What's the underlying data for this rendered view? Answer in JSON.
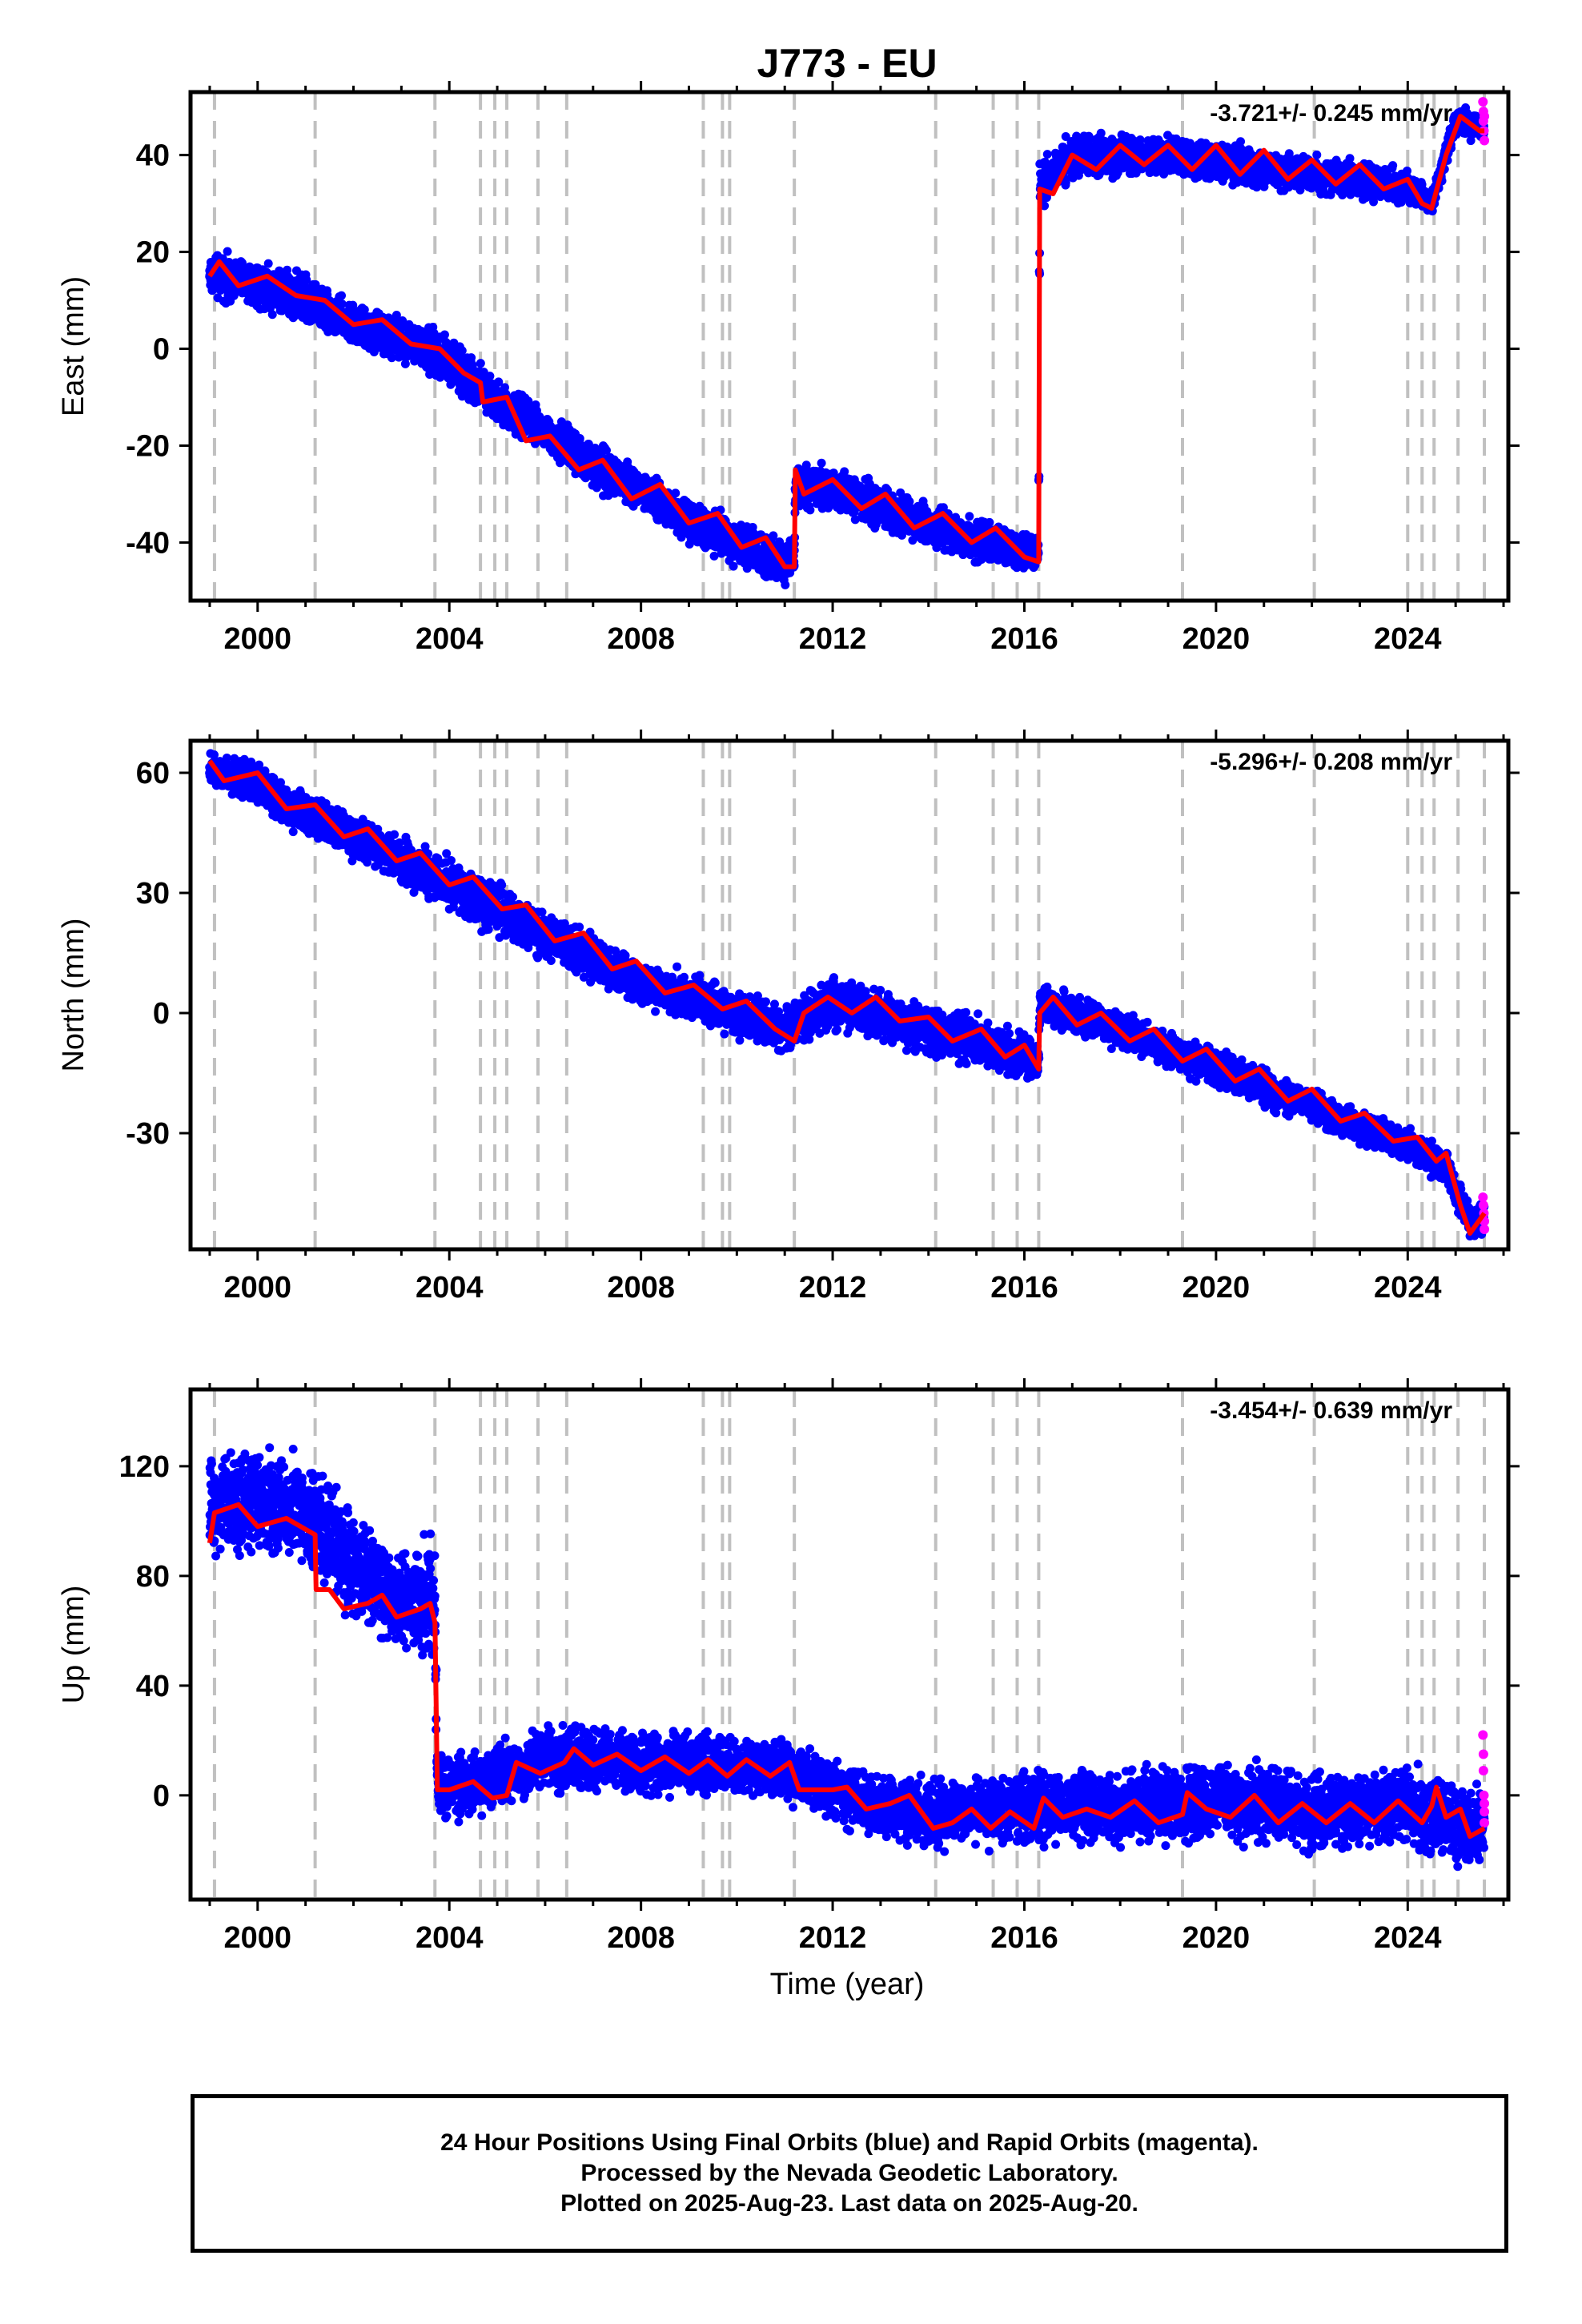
{
  "title": "J773 - EU",
  "xlabel": "Time (year)",
  "x_ticks": [
    "2000",
    "2004",
    "2008",
    "2012",
    "2016",
    "2020",
    "2024"
  ],
  "colors": {
    "final_orbits": "#0000ff",
    "rapid_orbits": "#ff00ff",
    "model": "#ff0000",
    "event_lines": "#c0c0c0"
  },
  "event_years": [
    1999.1,
    2001.2,
    2003.7,
    2004.65,
    2004.95,
    2005.2,
    2005.85,
    2006.45,
    2009.3,
    2009.7,
    2009.85,
    2011.2,
    2014.15,
    2015.35,
    2015.85,
    2016.3,
    2019.3,
    2022.05,
    2024.0,
    2024.3,
    2024.55,
    2025.05,
    2025.6
  ],
  "footer": {
    "line1": "24 Hour Positions Using Final Orbits (blue) and Rapid Orbits (magenta).",
    "line2": "Processed by the Nevada Geodetic Laboratory.",
    "line3": "Plotted on 2025-Aug-23. Last data on 2025-Aug-20."
  },
  "chart_data": [
    {
      "type": "scatter",
      "ylabel": "East (mm)",
      "rate_label": "-3.721+/- 0.245 mm/yr",
      "xlim": [
        1998.6,
        2026.1
      ],
      "ylim": [
        -52,
        53
      ],
      "y_ticks": [
        -40,
        -20,
        0,
        20,
        40
      ],
      "model_line": [
        [
          1999.0,
          15
        ],
        [
          1999.2,
          18
        ],
        [
          1999.6,
          13
        ],
        [
          2000.2,
          15
        ],
        [
          2000.8,
          11
        ],
        [
          2001.4,
          10
        ],
        [
          2002.0,
          5
        ],
        [
          2002.6,
          6
        ],
        [
          2003.2,
          1
        ],
        [
          2003.8,
          0
        ],
        [
          2004.3,
          -5
        ],
        [
          2004.65,
          -7
        ],
        [
          2004.7,
          -11
        ],
        [
          2005.2,
          -10
        ],
        [
          2005.6,
          -19
        ],
        [
          2006.1,
          -18
        ],
        [
          2006.7,
          -25
        ],
        [
          2007.2,
          -23
        ],
        [
          2007.8,
          -31
        ],
        [
          2008.4,
          -28
        ],
        [
          2009.0,
          -36
        ],
        [
          2009.6,
          -34
        ],
        [
          2010.1,
          -41
        ],
        [
          2010.6,
          -39
        ],
        [
          2011.0,
          -45
        ],
        [
          2011.2,
          -45
        ],
        [
          2011.22,
          -25
        ],
        [
          2011.4,
          -30
        ],
        [
          2012.0,
          -27
        ],
        [
          2012.6,
          -33
        ],
        [
          2013.1,
          -30
        ],
        [
          2013.7,
          -37
        ],
        [
          2014.3,
          -34
        ],
        [
          2014.9,
          -40
        ],
        [
          2015.4,
          -37
        ],
        [
          2016.0,
          -43
        ],
        [
          2016.3,
          -44
        ],
        [
          2016.32,
          33
        ],
        [
          2016.6,
          32
        ],
        [
          2017.0,
          40
        ],
        [
          2017.5,
          37
        ],
        [
          2018.0,
          42
        ],
        [
          2018.5,
          38
        ],
        [
          2019.0,
          42
        ],
        [
          2019.5,
          37
        ],
        [
          2020.0,
          42
        ],
        [
          2020.5,
          36
        ],
        [
          2021.0,
          41
        ],
        [
          2021.5,
          35
        ],
        [
          2022.0,
          39
        ],
        [
          2022.5,
          34
        ],
        [
          2023.0,
          38
        ],
        [
          2023.5,
          33
        ],
        [
          2024.0,
          35
        ],
        [
          2024.3,
          30
        ],
        [
          2024.5,
          29
        ],
        [
          2024.8,
          40
        ],
        [
          2025.1,
          48
        ],
        [
          2025.5,
          45
        ],
        [
          2025.6,
          45
        ]
      ],
      "scatter_envelope": [
        [
          1999.0,
          10,
          21
        ],
        [
          2000.0,
          7,
          20
        ],
        [
          2001.0,
          4,
          17
        ],
        [
          2002.0,
          -1,
          10
        ],
        [
          2003.0,
          -4,
          8
        ],
        [
          2004.0,
          -9,
          4
        ],
        [
          2005.0,
          -16,
          -5
        ],
        [
          2006.0,
          -22,
          -12
        ],
        [
          2007.0,
          -30,
          -18
        ],
        [
          2008.0,
          -35,
          -24
        ],
        [
          2009.0,
          -41,
          -30
        ],
        [
          2010.0,
          -46,
          -34
        ],
        [
          2011.0,
          -50,
          -38
        ],
        [
          2011.2,
          -47,
          -40
        ],
        [
          2011.22,
          -34,
          -22
        ],
        [
          2012.0,
          -35,
          -23
        ],
        [
          2013.0,
          -39,
          -27
        ],
        [
          2014.0,
          -42,
          -31
        ],
        [
          2015.0,
          -45,
          -34
        ],
        [
          2016.3,
          -47,
          -38
        ],
        [
          2016.32,
          28,
          39
        ],
        [
          2017.0,
          34,
          46
        ],
        [
          2018.0,
          35,
          45
        ],
        [
          2019.0,
          35,
          45
        ],
        [
          2020.0,
          33,
          44
        ],
        [
          2021.0,
          32,
          42
        ],
        [
          2022.0,
          31,
          41
        ],
        [
          2023.0,
          30,
          40
        ],
        [
          2024.0,
          29,
          38
        ],
        [
          2024.5,
          27,
          33
        ],
        [
          2025.0,
          43,
          51
        ],
        [
          2025.6,
          42,
          49
        ]
      ],
      "rapid_points": [
        [
          2025.57,
          51
        ],
        [
          2025.58,
          49
        ],
        [
          2025.58,
          47
        ],
        [
          2025.59,
          45
        ],
        [
          2025.6,
          43
        ],
        [
          2025.6,
          48
        ]
      ]
    },
    {
      "type": "scatter",
      "ylabel": "North (mm)",
      "rate_label": "-5.296+/- 0.208 mm/yr",
      "xlim": [
        1998.6,
        2026.1
      ],
      "ylim": [
        -59,
        68
      ],
      "y_ticks": [
        -30,
        0,
        30,
        60
      ],
      "model_line": [
        [
          1999.0,
          63
        ],
        [
          1999.3,
          58
        ],
        [
          2000.0,
          60
        ],
        [
          2000.6,
          51
        ],
        [
          2001.2,
          52
        ],
        [
          2001.8,
          44
        ],
        [
          2002.3,
          46
        ],
        [
          2002.9,
          38
        ],
        [
          2003.4,
          40
        ],
        [
          2004.0,
          32
        ],
        [
          2004.5,
          34
        ],
        [
          2005.1,
          26
        ],
        [
          2005.6,
          27
        ],
        [
          2006.2,
          18
        ],
        [
          2006.8,
          20
        ],
        [
          2007.4,
          11
        ],
        [
          2007.9,
          13
        ],
        [
          2008.5,
          5
        ],
        [
          2009.1,
          7
        ],
        [
          2009.7,
          1
        ],
        [
          2010.2,
          3
        ],
        [
          2010.8,
          -4
        ],
        [
          2011.2,
          -7
        ],
        [
          2011.4,
          0
        ],
        [
          2011.9,
          4
        ],
        [
          2012.4,
          0
        ],
        [
          2012.9,
          4
        ],
        [
          2013.4,
          -2
        ],
        [
          2014.0,
          -1
        ],
        [
          2014.5,
          -7
        ],
        [
          2015.1,
          -4
        ],
        [
          2015.6,
          -11
        ],
        [
          2016.0,
          -8
        ],
        [
          2016.3,
          -14
        ],
        [
          2016.32,
          0
        ],
        [
          2016.6,
          4
        ],
        [
          2017.1,
          -3
        ],
        [
          2017.6,
          0
        ],
        [
          2018.2,
          -7
        ],
        [
          2018.7,
          -4
        ],
        [
          2019.3,
          -12
        ],
        [
          2019.8,
          -9
        ],
        [
          2020.4,
          -17
        ],
        [
          2020.9,
          -14
        ],
        [
          2021.5,
          -22
        ],
        [
          2022.0,
          -19
        ],
        [
          2022.6,
          -27
        ],
        [
          2023.1,
          -25
        ],
        [
          2023.7,
          -32
        ],
        [
          2024.2,
          -31
        ],
        [
          2024.6,
          -37
        ],
        [
          2024.8,
          -35
        ],
        [
          2025.1,
          -48
        ],
        [
          2025.3,
          -55
        ],
        [
          2025.6,
          -50
        ]
      ],
      "scatter_envelope": [
        [
          1999.0,
          56,
          67
        ],
        [
          2000.0,
          50,
          64
        ],
        [
          2001.0,
          43,
          56
        ],
        [
          2002.0,
          37,
          51
        ],
        [
          2003.0,
          31,
          45
        ],
        [
          2004.0,
          24,
          40
        ],
        [
          2005.0,
          18,
          34
        ],
        [
          2006.0,
          12,
          27
        ],
        [
          2007.0,
          6,
          21
        ],
        [
          2008.0,
          1,
          14
        ],
        [
          2009.0,
          -3,
          11
        ],
        [
          2010.0,
          -7,
          7
        ],
        [
          2011.0,
          -11,
          3
        ],
        [
          2012.0,
          -6,
          11
        ],
        [
          2013.0,
          -9,
          7
        ],
        [
          2014.0,
          -12,
          4
        ],
        [
          2015.0,
          -15,
          1
        ],
        [
          2016.3,
          -19,
          -5
        ],
        [
          2016.32,
          -4,
          8
        ],
        [
          2017.0,
          -6,
          6
        ],
        [
          2018.0,
          -10,
          2
        ],
        [
          2019.0,
          -15,
          -3
        ],
        [
          2020.0,
          -20,
          -8
        ],
        [
          2021.0,
          -24,
          -13
        ],
        [
          2022.0,
          -29,
          -18
        ],
        [
          2023.0,
          -34,
          -23
        ],
        [
          2024.0,
          -38,
          -28
        ],
        [
          2024.8,
          -44,
          -33
        ],
        [
          2025.3,
          -58,
          -47
        ],
        [
          2025.6,
          -56,
          -46
        ]
      ],
      "rapid_points": [
        [
          2025.57,
          -46
        ],
        [
          2025.58,
          -48
        ],
        [
          2025.59,
          -50
        ],
        [
          2025.6,
          -52
        ],
        [
          2025.6,
          -54
        ]
      ]
    },
    {
      "type": "scatter",
      "ylabel": "Up (mm)",
      "rate_label": "-3.454+/- 0.639 mm/yr",
      "xlim": [
        1998.6,
        2026.1
      ],
      "ylim": [
        -38,
        148
      ],
      "y_ticks": [
        0,
        40,
        80,
        120
      ],
      "model_line": [
        [
          1999.0,
          92
        ],
        [
          1999.1,
          103
        ],
        [
          1999.6,
          106
        ],
        [
          2000.0,
          98
        ],
        [
          2000.6,
          101
        ],
        [
          2001.2,
          95
        ],
        [
          2001.22,
          75
        ],
        [
          2001.5,
          75
        ],
        [
          2001.8,
          68
        ],
        [
          2002.3,
          70
        ],
        [
          2002.6,
          73
        ],
        [
          2002.9,
          65
        ],
        [
          2003.4,
          68
        ],
        [
          2003.6,
          70
        ],
        [
          2003.7,
          63
        ],
        [
          2003.75,
          2
        ],
        [
          2004.0,
          2
        ],
        [
          2004.5,
          5
        ],
        [
          2004.9,
          -1
        ],
        [
          2005.2,
          0
        ],
        [
          2005.4,
          12
        ],
        [
          2005.9,
          8
        ],
        [
          2006.4,
          12
        ],
        [
          2006.6,
          17
        ],
        [
          2007.0,
          11
        ],
        [
          2007.5,
          15
        ],
        [
          2008.0,
          9
        ],
        [
          2008.5,
          14
        ],
        [
          2009.0,
          8
        ],
        [
          2009.4,
          13
        ],
        [
          2009.8,
          7
        ],
        [
          2010.2,
          13
        ],
        [
          2010.7,
          7
        ],
        [
          2011.1,
          12
        ],
        [
          2011.3,
          2
        ],
        [
          2012.0,
          2
        ],
        [
          2012.3,
          3
        ],
        [
          2012.7,
          -5
        ],
        [
          2013.2,
          -3
        ],
        [
          2013.6,
          0
        ],
        [
          2014.1,
          -12
        ],
        [
          2014.5,
          -10
        ],
        [
          2014.9,
          -5
        ],
        [
          2015.3,
          -12
        ],
        [
          2015.7,
          -6
        ],
        [
          2016.2,
          -12
        ],
        [
          2016.4,
          -1
        ],
        [
          2016.8,
          -8
        ],
        [
          2017.3,
          -5
        ],
        [
          2017.8,
          -8
        ],
        [
          2018.3,
          -2
        ],
        [
          2018.8,
          -10
        ],
        [
          2019.3,
          -7
        ],
        [
          2019.4,
          1
        ],
        [
          2019.8,
          -5
        ],
        [
          2020.3,
          -8
        ],
        [
          2020.8,
          0
        ],
        [
          2021.3,
          -10
        ],
        [
          2021.8,
          -3
        ],
        [
          2022.3,
          -10
        ],
        [
          2022.8,
          -3
        ],
        [
          2023.3,
          -10
        ],
        [
          2023.8,
          -2
        ],
        [
          2024.3,
          -10
        ],
        [
          2024.5,
          -4
        ],
        [
          2024.6,
          3
        ],
        [
          2024.8,
          -8
        ],
        [
          2025.1,
          -5
        ],
        [
          2025.3,
          -15
        ],
        [
          2025.6,
          -12
        ]
      ],
      "scatter_envelope": [
        [
          1999.0,
          82,
          130
        ],
        [
          2000.0,
          82,
          132
        ],
        [
          2001.0,
          78,
          128
        ],
        [
          2002.0,
          60,
          110
        ],
        [
          2003.0,
          45,
          95
        ],
        [
          2003.7,
          42,
          100
        ],
        [
          2003.75,
          -15,
          22
        ],
        [
          2005.0,
          -8,
          20
        ],
        [
          2006.0,
          -2,
          28
        ],
        [
          2007.0,
          0,
          28
        ],
        [
          2008.0,
          -2,
          25
        ],
        [
          2009.0,
          -3,
          26
        ],
        [
          2010.0,
          -2,
          25
        ],
        [
          2011.0,
          -5,
          24
        ],
        [
          2012.0,
          -12,
          15
        ],
        [
          2013.0,
          -18,
          12
        ],
        [
          2014.0,
          -22,
          8
        ],
        [
          2015.0,
          -22,
          10
        ],
        [
          2016.0,
          -22,
          12
        ],
        [
          2017.0,
          -20,
          13
        ],
        [
          2018.0,
          -22,
          12
        ],
        [
          2019.0,
          -20,
          15
        ],
        [
          2020.0,
          -20,
          15
        ],
        [
          2021.0,
          -22,
          15
        ],
        [
          2022.0,
          -24,
          12
        ],
        [
          2023.0,
          -22,
          12
        ],
        [
          2024.0,
          -22,
          15
        ],
        [
          2025.0,
          -28,
          8
        ],
        [
          2025.6,
          -32,
          6
        ]
      ],
      "rapid_points": [
        [
          2025.57,
          22
        ],
        [
          2025.58,
          15
        ],
        [
          2025.58,
          9
        ],
        [
          2025.59,
          0
        ],
        [
          2025.6,
          -3
        ],
        [
          2025.6,
          -6
        ],
        [
          2025.6,
          -10
        ]
      ]
    }
  ]
}
